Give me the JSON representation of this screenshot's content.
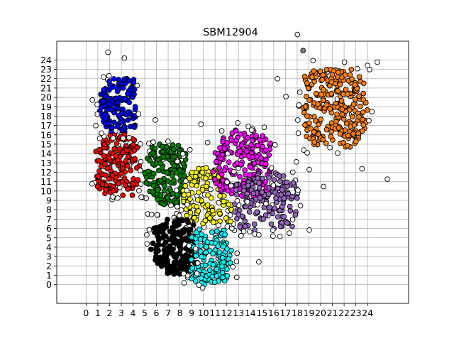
{
  "chart_data": {
    "type": "scatter",
    "title": "SBM12904",
    "xlabel": "",
    "ylabel": "",
    "xlim": [
      -2.5,
      27.5
    ],
    "ylim": [
      -2.0,
      26.0
    ],
    "xticks": [
      0,
      1,
      2,
      3,
      4,
      5,
      6,
      7,
      8,
      9,
      10,
      11,
      12,
      13,
      14,
      15,
      16,
      17,
      18,
      19,
      20,
      21,
      22,
      23,
      24
    ],
    "yticks": [
      0,
      1,
      2,
      3,
      4,
      5,
      6,
      7,
      8,
      9,
      10,
      11,
      12,
      13,
      14,
      15,
      16,
      17,
      18,
      19,
      20,
      21,
      22,
      23,
      24
    ],
    "grid": true,
    "marker": "circle",
    "marker_edge_color": "#000000",
    "clusters": [
      {
        "color": "#0000ff",
        "center": [
          3.0,
          19.0
        ],
        "extent": [
          1.0,
          4.3,
          16.0,
          22.0
        ],
        "n": 150
      },
      {
        "color": "#ff0000",
        "center": [
          2.8,
          12.5
        ],
        "extent": [
          0.8,
          4.6,
          9.5,
          16.0
        ],
        "n": 160
      },
      {
        "color": "#008000",
        "center": [
          7.0,
          12.0
        ],
        "extent": [
          5.0,
          8.5,
          8.5,
          15.0
        ],
        "n": 160
      },
      {
        "color": "#ffff00",
        "center": [
          10.2,
          8.5
        ],
        "extent": [
          8.2,
          12.4,
          6.5,
          13.5
        ],
        "n": 140
      },
      {
        "color": "#ff00ff",
        "center": [
          13.5,
          12.5
        ],
        "extent": [
          10.8,
          15.8,
          9.0,
          16.5
        ],
        "n": 210
      },
      {
        "color": "#9467bd",
        "center": [
          15.3,
          8.5
        ],
        "extent": [
          12.5,
          18.0,
          5.8,
          12.0
        ],
        "n": 150
      },
      {
        "color": "#000000",
        "center": [
          7.6,
          4.5
        ],
        "extent": [
          5.5,
          9.3,
          1.0,
          7.0
        ],
        "n": 180
      },
      {
        "color": "#00ffff",
        "center": [
          10.5,
          3.0
        ],
        "extent": [
          8.8,
          12.4,
          0.0,
          6.0
        ],
        "n": 140
      },
      {
        "color": "#ff7f0e",
        "center": [
          21.0,
          19.0
        ],
        "extent": [
          18.5,
          24.0,
          14.5,
          23.0
        ],
        "n": 260
      }
    ],
    "outliers_color": "#ffffff",
    "outliers_n": 110,
    "highlight_point": {
      "x": 18.5,
      "y": 25.0,
      "color": "#808080"
    }
  }
}
